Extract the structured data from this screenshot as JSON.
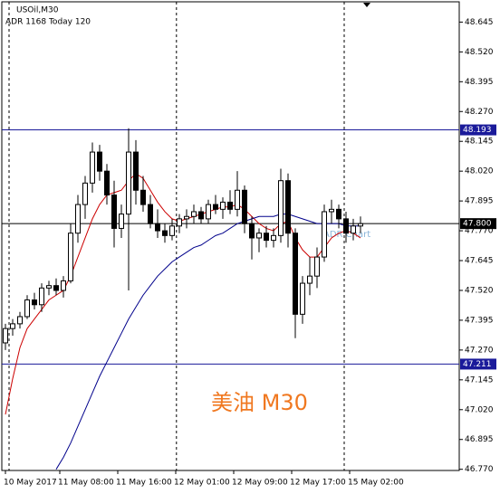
{
  "chart_data": {
    "type": "candlestick",
    "title": "USOil,M30",
    "subtitle": "ADR 1168  Today 120",
    "annotations": [
      "ADR Chart",
      "美油 M30"
    ],
    "ylim": [
      46.765,
      48.73
    ],
    "yticks": [
      48.645,
      {
        "value": 48.52,
        "label": "48.520"
      },
      48.395,
      {
        "value": 48.27,
        "label": "48.270"
      },
      48.145,
      {
        "value": 48.02,
        "label": "48.020"
      },
      47.895,
      {
        "value": 47.77,
        "label": "47.770"
      },
      47.645,
      {
        "value": 47.52,
        "label": "47.520"
      },
      47.395,
      {
        "value": 47.27,
        "label": "47.270"
      },
      47.145,
      {
        "value": 47.02,
        "label": "47.020"
      },
      46.895,
      {
        "value": 46.77,
        "label": "46.770"
      }
    ],
    "xticks": [
      {
        "value": 0,
        "label": "10 May 2017"
      },
      {
        "value": 7.5,
        "label": "11 May 08:00"
      },
      {
        "value": 15.5,
        "label": "11 May 16:00"
      },
      {
        "value": 23.5,
        "label": "12 May 01:00"
      },
      {
        "value": 31.5,
        "label": "12 May 09:00"
      },
      {
        "value": 39.5,
        "label": "12 May 17:00"
      },
      {
        "value": 47.5,
        "label": "15 May 02:00"
      }
    ],
    "day_separators": [
      0.5,
      23.6,
      46.75
    ],
    "levels": [
      {
        "value": 48.193,
        "color": "#1a1a9a"
      },
      {
        "value": 47.8,
        "label": "47.800",
        "color": "#000000"
      },
      {
        "value": 47.211,
        "color": "#1a1a9a"
      }
    ],
    "open": [
      47.3,
      47.36,
      47.38,
      47.41,
      47.48,
      47.46,
      47.53,
      47.54,
      47.52,
      47.56,
      47.76,
      47.88,
      47.97,
      48.1,
      48.02,
      47.92,
      47.78,
      47.84,
      48.1,
      47.94,
      47.88,
      47.8,
      47.77,
      47.75,
      47.79,
      47.82,
      47.83,
      47.85,
      47.82,
      47.88,
      47.86,
      47.89,
      47.86,
      47.94,
      47.8,
      47.74,
      47.76,
      47.73,
      47.75,
      47.98,
      47.76,
      47.42,
      47.55,
      47.58,
      47.66,
      47.85,
      47.86,
      47.82,
      47.76,
      47.79
    ],
    "high": [
      47.38,
      47.4,
      47.43,
      47.5,
      47.51,
      47.55,
      47.56,
      47.57,
      47.58,
      47.8,
      47.92,
      48.0,
      48.14,
      48.13,
      48.05,
      47.98,
      47.88,
      48.2,
      48.15,
      48.0,
      47.92,
      47.86,
      47.8,
      47.82,
      47.84,
      47.86,
      47.88,
      47.87,
      47.9,
      47.92,
      47.91,
      47.94,
      48.02,
      47.96,
      47.83,
      47.78,
      47.79,
      47.78,
      48.03,
      48.01,
      47.78,
      47.58,
      47.66,
      47.7,
      47.88,
      47.9,
      47.88,
      47.85,
      47.82,
      47.83
    ],
    "low": [
      47.27,
      47.33,
      47.36,
      47.4,
      47.44,
      47.43,
      47.5,
      47.5,
      47.49,
      47.55,
      47.72,
      47.82,
      47.93,
      47.98,
      47.88,
      47.7,
      47.74,
      47.52,
      47.88,
      47.85,
      47.78,
      47.74,
      47.72,
      47.73,
      47.76,
      47.78,
      47.8,
      47.8,
      47.8,
      47.84,
      47.82,
      47.84,
      47.83,
      47.76,
      47.65,
      47.68,
      47.7,
      47.7,
      47.72,
      47.7,
      47.32,
      47.38,
      47.5,
      47.53,
      47.64,
      47.8,
      47.78,
      47.72,
      47.73,
      47.76
    ],
    "close": [
      47.36,
      47.38,
      47.41,
      47.48,
      47.46,
      47.53,
      47.54,
      47.52,
      47.56,
      47.76,
      47.88,
      47.97,
      48.1,
      48.02,
      47.92,
      47.78,
      47.84,
      48.1,
      47.94,
      47.88,
      47.8,
      47.77,
      47.75,
      47.79,
      47.82,
      47.83,
      47.85,
      47.82,
      47.88,
      47.86,
      47.89,
      47.86,
      47.94,
      47.8,
      47.74,
      47.76,
      47.73,
      47.75,
      47.98,
      47.76,
      47.42,
      47.55,
      47.58,
      47.66,
      47.85,
      47.86,
      47.82,
      47.76,
      47.79,
      47.8
    ],
    "ma_lines": [
      {
        "color": "#cc0000",
        "values": [
          47.0,
          47.15,
          47.28,
          47.36,
          47.4,
          47.44,
          47.48,
          47.5,
          47.52,
          47.58,
          47.66,
          47.74,
          47.82,
          47.88,
          47.92,
          47.93,
          47.94,
          47.98,
          48.01,
          47.99,
          47.94,
          47.89,
          47.85,
          47.82,
          47.81,
          47.82,
          47.83,
          47.84,
          47.85,
          47.86,
          47.87,
          47.87,
          47.88,
          47.86,
          47.83,
          47.8,
          47.78,
          47.77,
          47.8,
          47.81,
          47.74,
          47.69,
          47.66,
          47.66,
          47.7,
          47.74,
          47.76,
          47.77,
          47.76,
          47.74
        ]
      },
      {
        "color": "#00008b",
        "values": [
          null,
          null,
          null,
          null,
          null,
          null,
          null,
          46.77,
          46.82,
          46.88,
          46.95,
          47.02,
          47.09,
          47.16,
          47.22,
          47.28,
          47.34,
          47.4,
          47.45,
          47.5,
          47.54,
          47.58,
          47.61,
          47.64,
          47.66,
          47.68,
          47.7,
          47.71,
          47.73,
          47.75,
          47.76,
          47.78,
          47.8,
          47.81,
          47.82,
          47.83,
          47.83,
          47.83,
          47.84,
          47.84,
          47.83,
          47.82,
          47.81,
          47.8,
          47.8,
          47.8,
          47.8,
          47.79,
          47.79,
          47.79
        ]
      }
    ]
  }
}
